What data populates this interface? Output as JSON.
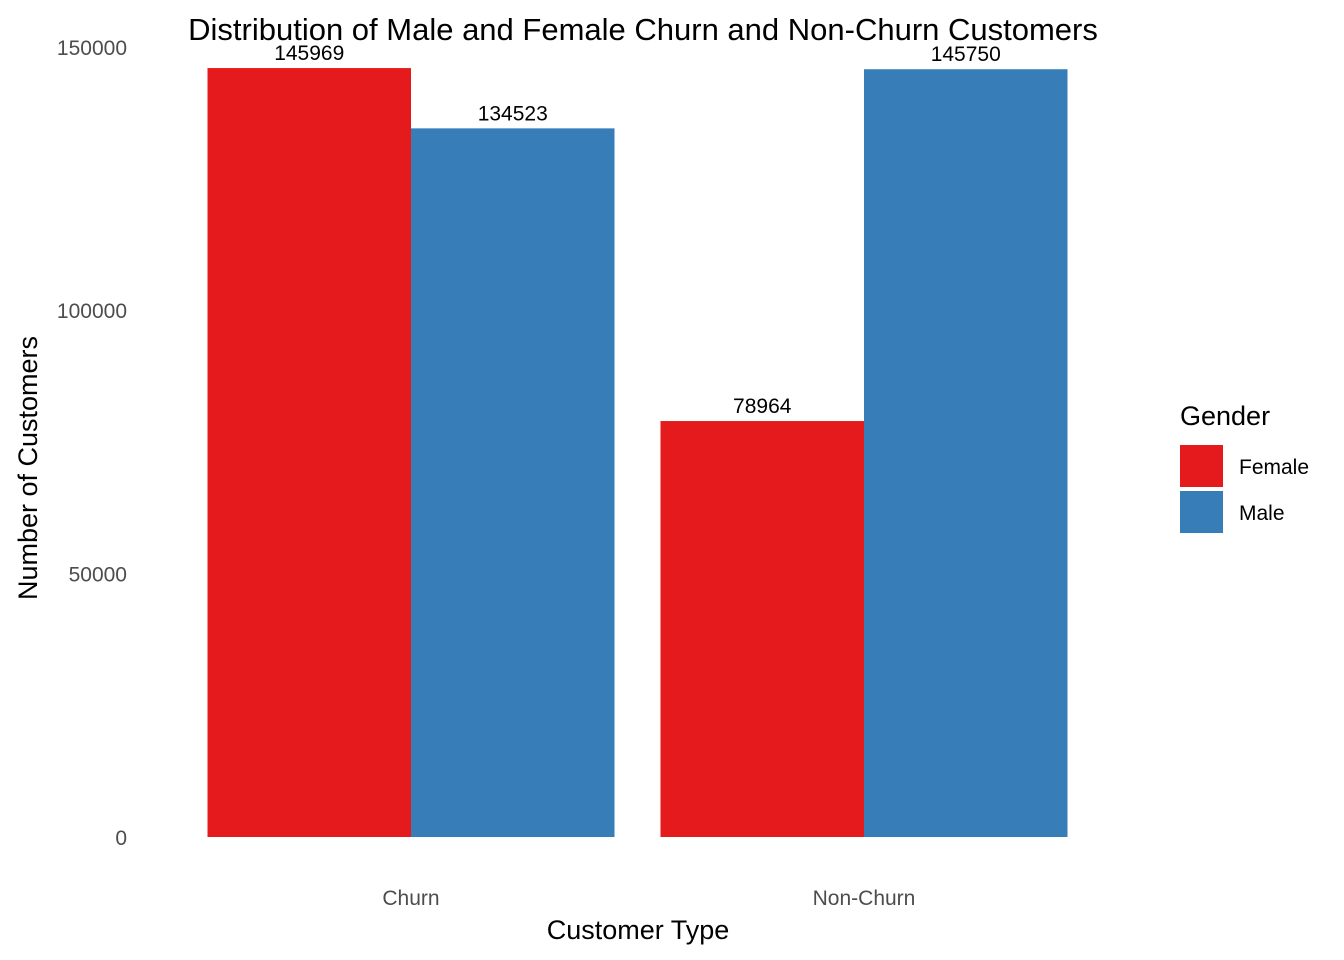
{
  "chart_data": {
    "type": "bar",
    "title": "Distribution of Male and Female Churn and Non-Churn Customers",
    "xlabel": "Customer Type",
    "ylabel": "Number of Customers",
    "categories": [
      "Churn",
      "Non-Churn"
    ],
    "series": [
      {
        "name": "Female",
        "values": [
          145969,
          78964
        ],
        "color": "#e41a1c"
      },
      {
        "name": "Male",
        "values": [
          134523,
          145750
        ],
        "color": "#377eb8"
      }
    ],
    "ylim": [
      0,
      150000
    ],
    "yticks": [
      0,
      50000,
      100000,
      150000
    ],
    "ytick_labels": [
      "0",
      "50000",
      "100000",
      "150000"
    ],
    "grid": false,
    "legend": {
      "title": "Gender",
      "position": "right"
    }
  }
}
